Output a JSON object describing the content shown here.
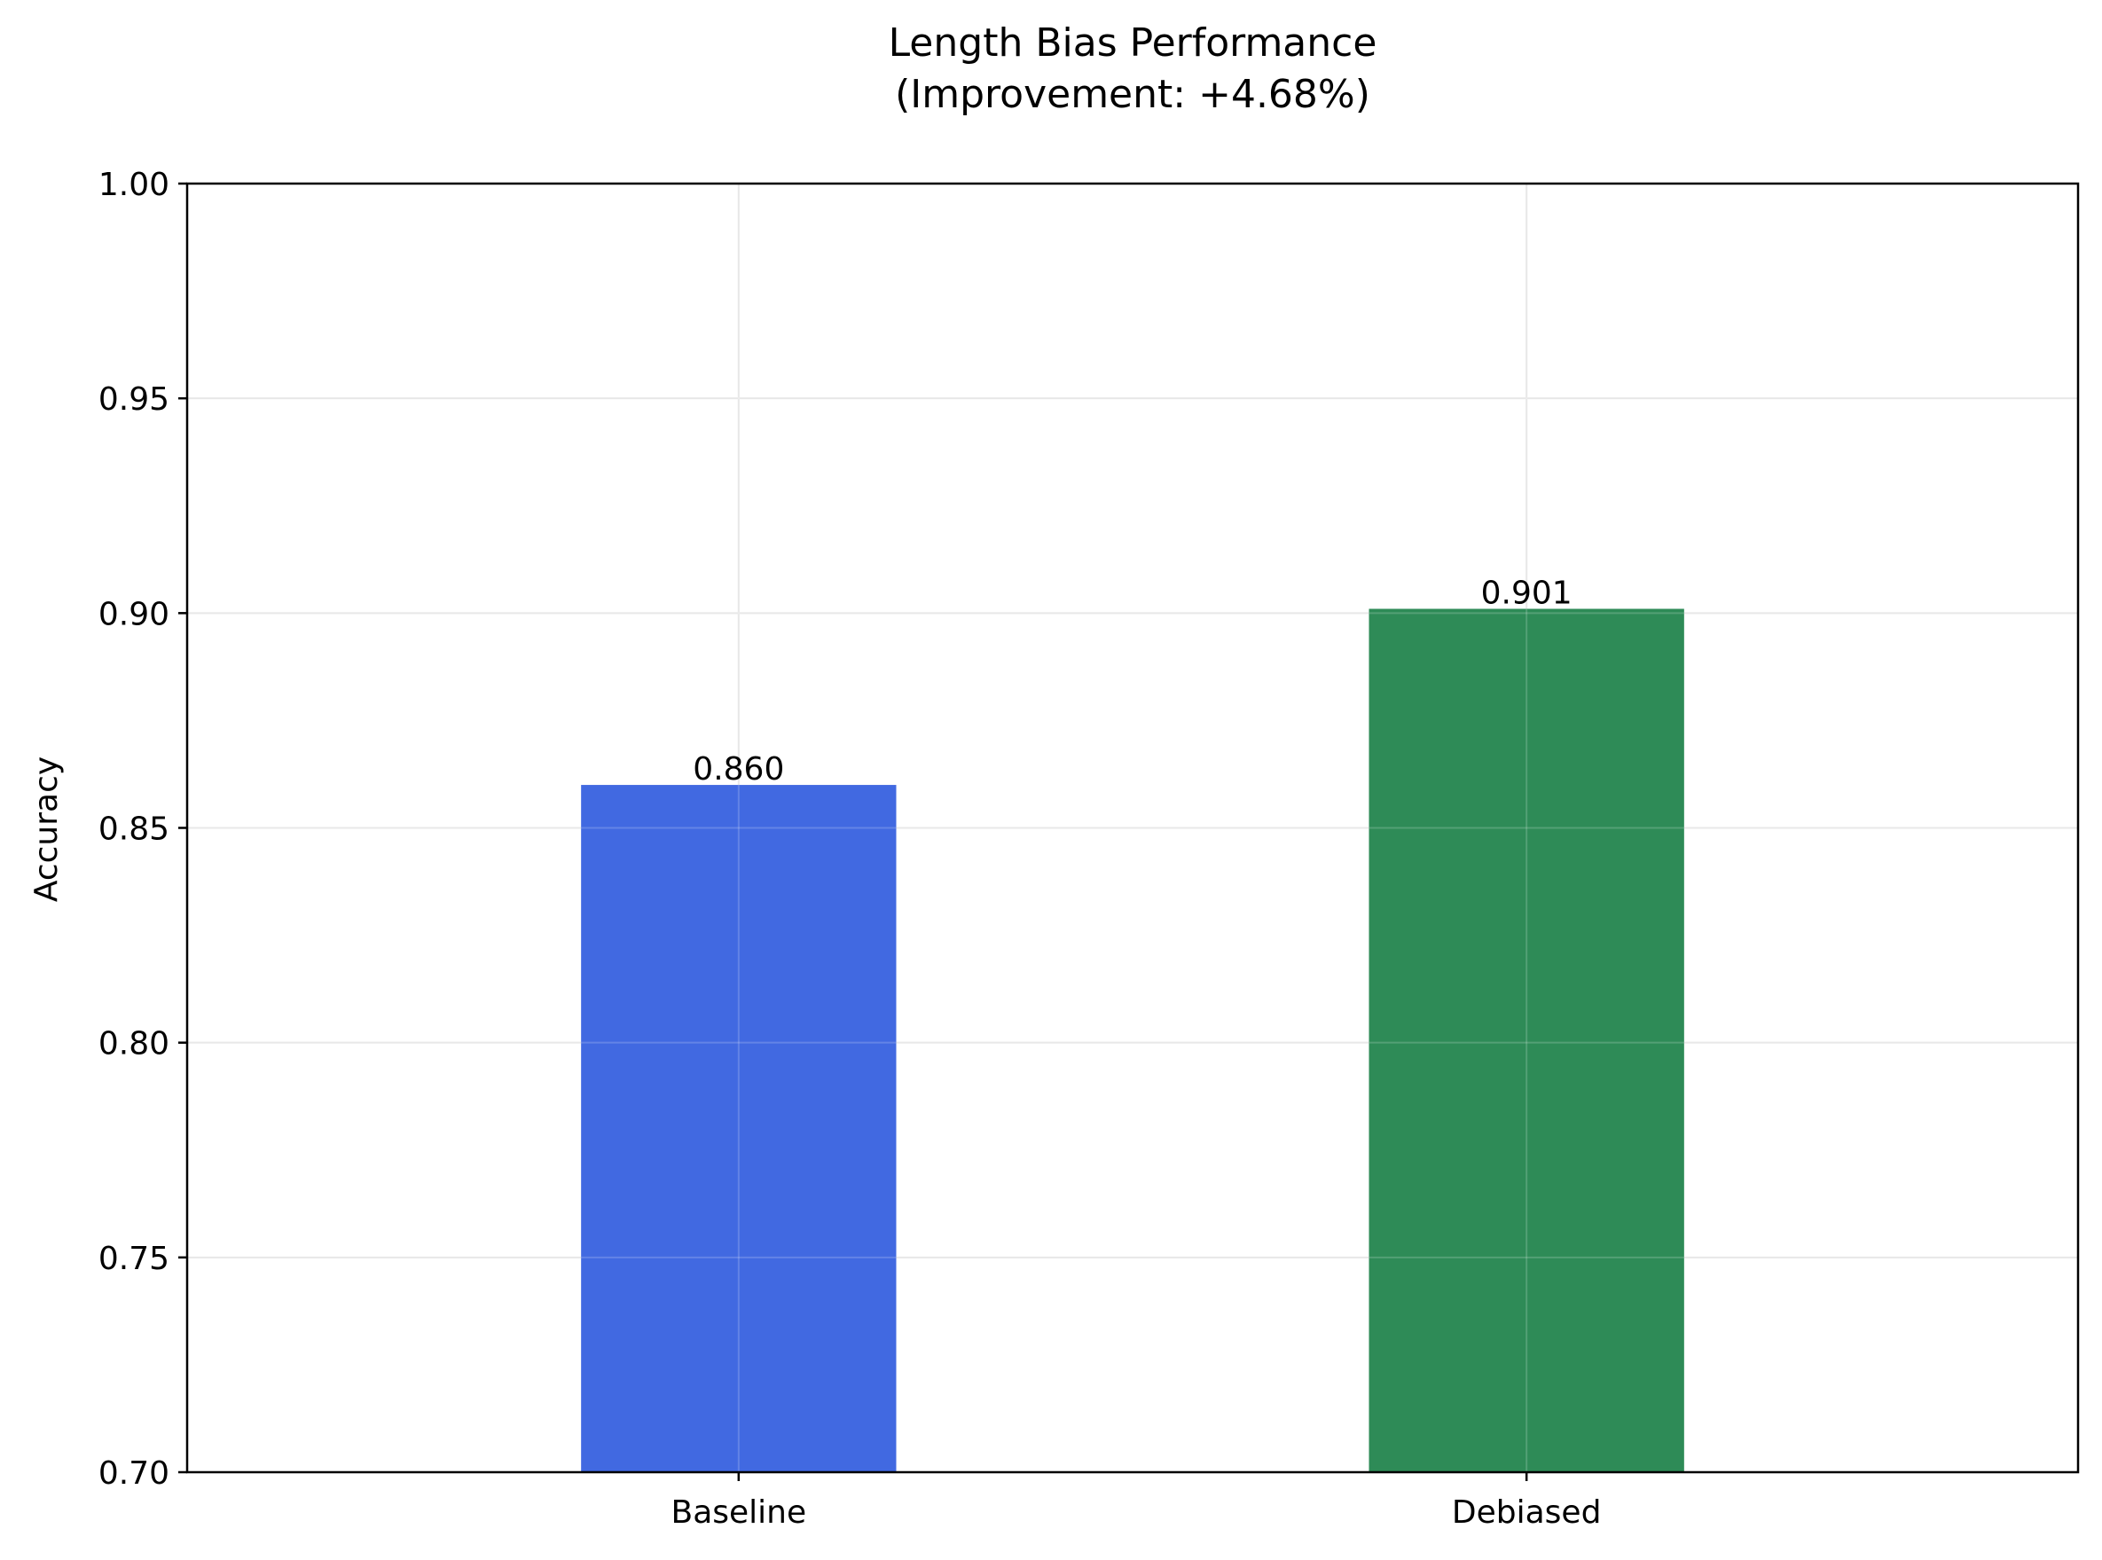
{
  "chart_data": {
    "type": "bar",
    "title": "Length Bias Performance",
    "subtitle": "(Improvement: +4.68%)",
    "xlabel": "",
    "ylabel": "Accuracy",
    "categories": [
      "Baseline",
      "Debiased"
    ],
    "values": [
      0.86,
      0.901
    ],
    "value_labels": [
      "0.860",
      "0.901"
    ],
    "colors": [
      "#4169e1",
      "#2e8b57"
    ],
    "ylim": [
      0.7,
      1.0
    ],
    "yticks": [
      0.7,
      0.75,
      0.8,
      0.85,
      0.9,
      0.95,
      1.0
    ],
    "ytick_labels": [
      "0.70",
      "0.75",
      "0.80",
      "0.85",
      "0.90",
      "0.95",
      "1.00"
    ],
    "grid": true,
    "legend": "none"
  }
}
